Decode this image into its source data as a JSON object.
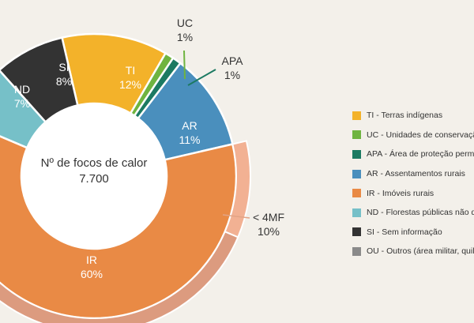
{
  "chart_data": {
    "type": "pie",
    "center": {
      "title": "Nº de focos de calor",
      "value": "7.700"
    },
    "slices": [
      {
        "key": "TI",
        "label": "TI",
        "percent": 12,
        "percent_label": "12%",
        "color": "#f3b22a"
      },
      {
        "key": "UC",
        "label": "UC",
        "percent": 1,
        "percent_label": "1%",
        "color": "#6fb440"
      },
      {
        "key": "APA",
        "label": "APA",
        "percent": 1,
        "percent_label": "1%",
        "color": "#1c7a62"
      },
      {
        "key": "AR",
        "label": "AR",
        "percent": 11,
        "percent_label": "11%",
        "color": "#4a8fbd"
      },
      {
        "key": "IR",
        "label": "IR",
        "percent": 60,
        "percent_label": "60%",
        "color": "#e98a45"
      },
      {
        "key": "ND",
        "label": "ND",
        "percent": 7,
        "percent_label": "7%",
        "color": "#76c0c8"
      },
      {
        "key": "SI",
        "label": "SI",
        "percent": 8,
        "percent_label": "8%",
        "color": "#333333"
      }
    ],
    "ir_subsets": [
      {
        "label": "< 4MF",
        "percent": 10,
        "percent_label": "10%",
        "color": "#f2b193"
      },
      {
        "label": "",
        "percent": 50,
        "color": "#dc9b7f"
      }
    ],
    "legend": [
      {
        "label": "TI - Terras indígenas",
        "color": "#f3b22a"
      },
      {
        "label": "UC - Unidades de conservação",
        "color": "#6fb440"
      },
      {
        "label": "APA - Área de proteção permanente",
        "color": "#1c7a62"
      },
      {
        "label": "AR - Assentamentos rurais",
        "color": "#4a8fbd"
      },
      {
        "label": "IR - Imóveis rurais",
        "color": "#e98a45"
      },
      {
        "label": "ND - Florestas públicas não destinadas",
        "color": "#76c0c8"
      },
      {
        "label": "SI - Sem informação",
        "color": "#333333"
      },
      {
        "label": "OU - Outros (área militar, quilombola)",
        "color": "#8a8a8a"
      }
    ]
  }
}
